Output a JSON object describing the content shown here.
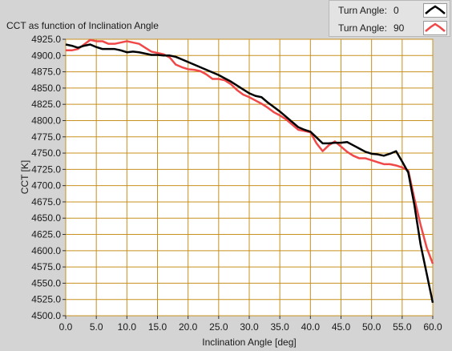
{
  "chart_data": {
    "type": "line",
    "title": "CCT as function of Inclination Angle",
    "xlabel": "Inclination Angle [deg]",
    "ylabel": "CCT [K]",
    "xlim": [
      0,
      60
    ],
    "ylim": [
      4500,
      4925
    ],
    "xticks": [
      0,
      5,
      10,
      15,
      20,
      25,
      30,
      35,
      40,
      45,
      50,
      55,
      60
    ],
    "yticks": [
      4500,
      4525,
      4550,
      4575,
      4600,
      4625,
      4650,
      4675,
      4700,
      4725,
      4750,
      4775,
      4800,
      4825,
      4850,
      4875,
      4900,
      4925
    ],
    "xtick_labels": [
      "0.0",
      "5.0",
      "10.0",
      "15.0",
      "20.0",
      "25.0",
      "30.0",
      "35.0",
      "40.0",
      "45.0",
      "50.0",
      "55.0",
      "60.0"
    ],
    "ytick_labels": [
      "4500.0",
      "4525.0",
      "4550.0",
      "4575.0",
      "4600.0",
      "4625.0",
      "4650.0",
      "4675.0",
      "4700.0",
      "4725.0",
      "4750.0",
      "4775.0",
      "4800.0",
      "4825.0",
      "4850.0",
      "4875.0",
      "4900.0",
      "4925.0"
    ],
    "grid": true,
    "legend_position": "top-right",
    "legend_label": "Turn Angle:",
    "plot_background": "#ffffff",
    "grid_color": "#c8901e",
    "series": [
      {
        "name": "0",
        "color": "#000000",
        "x": [
          0,
          1,
          2,
          3,
          4,
          5,
          6,
          7,
          8,
          9,
          10,
          11,
          12,
          13,
          14,
          15,
          16,
          17,
          18,
          19,
          20,
          21,
          22,
          23,
          24,
          25,
          26,
          27,
          28,
          29,
          30,
          31,
          32,
          33,
          34,
          35,
          36,
          37,
          38,
          39,
          40,
          41,
          42,
          43,
          44,
          45,
          46,
          47,
          48,
          49,
          50,
          51,
          52,
          53,
          54,
          55,
          56,
          57,
          58,
          59,
          60
        ],
        "y": [
          4917,
          4915,
          4912,
          4915,
          4917,
          4913,
          4910,
          4910,
          4910,
          4908,
          4905,
          4906,
          4905,
          4903,
          4901,
          4901,
          4900,
          4900,
          4898,
          4894,
          4890,
          4886,
          4882,
          4878,
          4874,
          4870,
          4865,
          4860,
          4854,
          4848,
          4842,
          4838,
          4836,
          4828,
          4821,
          4814,
          4806,
          4798,
          4790,
          4786,
          4783,
          4774,
          4765,
          4765,
          4766,
          4766,
          4767,
          4762,
          4757,
          4752,
          4749,
          4748,
          4746,
          4749,
          4753,
          4737,
          4720,
          4670,
          4610,
          4565,
          4520
        ]
      },
      {
        "name": "90",
        "color": "#f04848",
        "x": [
          0,
          1,
          2,
          3,
          4,
          5,
          6,
          7,
          8,
          9,
          10,
          11,
          12,
          13,
          14,
          15,
          16,
          17,
          18,
          19,
          20,
          21,
          22,
          23,
          24,
          25,
          26,
          27,
          28,
          29,
          30,
          31,
          32,
          33,
          34,
          35,
          36,
          37,
          38,
          39,
          40,
          41,
          42,
          43,
          44,
          45,
          46,
          47,
          48,
          49,
          50,
          51,
          52,
          53,
          54,
          55,
          56,
          57,
          58,
          59,
          60
        ],
        "y": [
          4908,
          4908,
          4910,
          4917,
          4924,
          4922,
          4922,
          4918,
          4918,
          4920,
          4922,
          4920,
          4918,
          4912,
          4906,
          4904,
          4902,
          4897,
          4886,
          4882,
          4879,
          4878,
          4876,
          4871,
          4864,
          4864,
          4862,
          4856,
          4847,
          4840,
          4836,
          4831,
          4826,
          4820,
          4813,
          4808,
          4802,
          4794,
          4786,
          4784,
          4782,
          4765,
          4753,
          4762,
          4768,
          4760,
          4752,
          4746,
          4742,
          4742,
          4739,
          4736,
          4733,
          4733,
          4731,
          4728,
          4723,
          4680,
          4640,
          4605,
          4580
        ]
      }
    ]
  }
}
